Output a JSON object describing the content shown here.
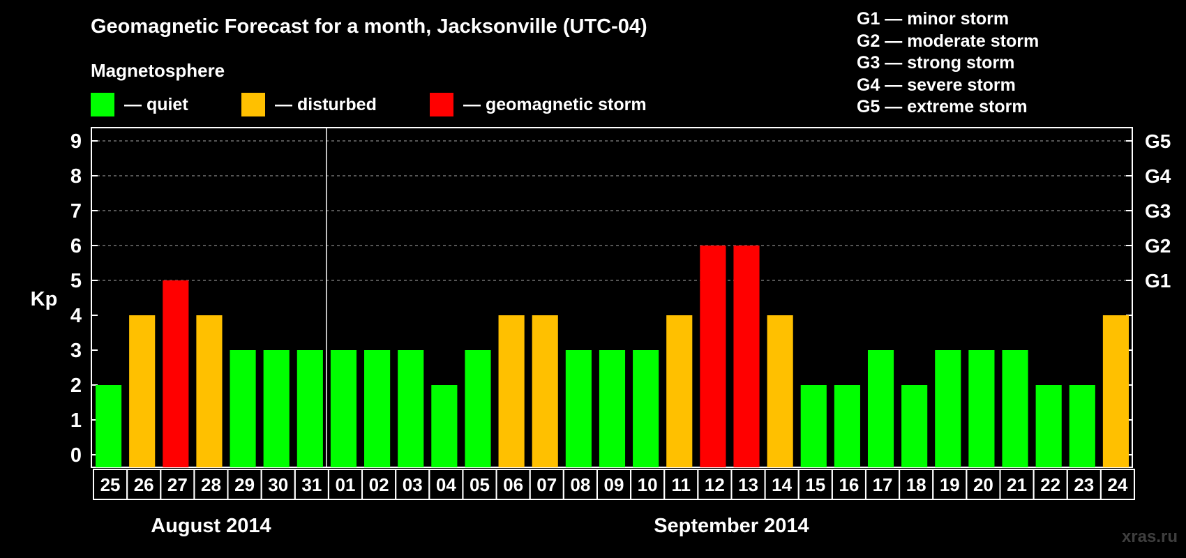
{
  "title": "Geomagnetic Forecast for a month, Jacksonville (UTC-04)",
  "legend": {
    "heading": "Magnetosphere",
    "items": [
      {
        "label": "— quiet",
        "color": "#00ff00"
      },
      {
        "label": "— disturbed",
        "color": "#ffc000"
      },
      {
        "label": "— geomagnetic storm",
        "color": "#ff0000"
      }
    ]
  },
  "storm_levels": [
    "G1 — minor storm",
    "G2 — moderate storm",
    "G3 — strong storm",
    "G4 — severe storm",
    "G5 — extreme storm"
  ],
  "watermark": "xras.ru",
  "chart_data": {
    "type": "bar",
    "ylabel": "Kp",
    "ylim": [
      0,
      9
    ],
    "yticks": [
      "0",
      "1",
      "2",
      "3",
      "4",
      "5",
      "6",
      "7",
      "8",
      "9"
    ],
    "right_axis": [
      {
        "value": 5,
        "label": "G1"
      },
      {
        "value": 6,
        "label": "G2"
      },
      {
        "value": 7,
        "label": "G3"
      },
      {
        "value": 8,
        "label": "G4"
      },
      {
        "value": 9,
        "label": "G5"
      }
    ],
    "grid": "dashed horizontal at 5–9",
    "categories": [
      "25",
      "26",
      "27",
      "28",
      "29",
      "30",
      "31",
      "01",
      "02",
      "03",
      "04",
      "05",
      "06",
      "07",
      "08",
      "09",
      "10",
      "11",
      "12",
      "13",
      "14",
      "15",
      "16",
      "17",
      "18",
      "19",
      "20",
      "21",
      "22",
      "23",
      "24"
    ],
    "values": [
      2,
      4,
      5,
      4,
      3,
      3,
      3,
      3,
      3,
      3,
      2,
      3,
      4,
      4,
      3,
      3,
      3,
      4,
      6,
      6,
      4,
      2,
      2,
      3,
      2,
      3,
      3,
      3,
      2,
      2,
      4
    ],
    "bar_colors": [
      "#00ff00",
      "#ffc000",
      "#ff0000",
      "#ffc000",
      "#00ff00",
      "#00ff00",
      "#00ff00",
      "#00ff00",
      "#00ff00",
      "#00ff00",
      "#00ff00",
      "#00ff00",
      "#ffc000",
      "#ffc000",
      "#00ff00",
      "#00ff00",
      "#00ff00",
      "#ffc000",
      "#ff0000",
      "#ff0000",
      "#ffc000",
      "#00ff00",
      "#00ff00",
      "#00ff00",
      "#00ff00",
      "#00ff00",
      "#00ff00",
      "#00ff00",
      "#00ff00",
      "#00ff00",
      "#ffc000"
    ],
    "month_labels": [
      {
        "label": "August 2014",
        "from": 0,
        "to": 6
      },
      {
        "label": "September 2014",
        "from": 7,
        "to": 30
      }
    ]
  }
}
